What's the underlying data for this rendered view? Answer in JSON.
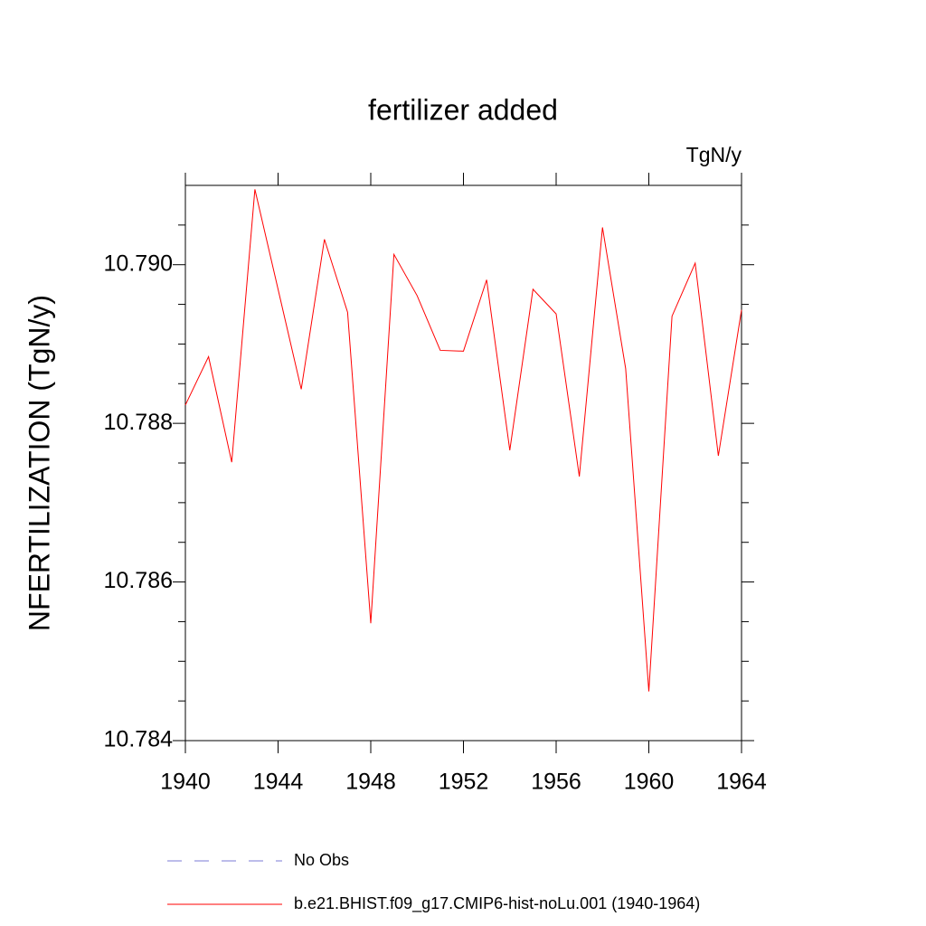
{
  "chart_data": {
    "type": "line",
    "title": "fertilizer added",
    "units": "TgN/y",
    "y_label": "NFERTILIZATION  (TgN/y)",
    "x": [
      1940,
      1941,
      1942,
      1943,
      1944,
      1945,
      1946,
      1947,
      1948,
      1949,
      1950,
      1951,
      1952,
      1953,
      1954,
      1955,
      1956,
      1957,
      1958,
      1959,
      1960,
      1961,
      1962,
      1963,
      1964
    ],
    "series": [
      {
        "name": "b.e21.BHIST.f09_g17.CMIP6-hist-noLu.001 (1940-1964)",
        "color": "#ff0000",
        "values": [
          10.78823,
          10.78884,
          10.78751,
          10.79095,
          10.78969,
          10.78843,
          10.79032,
          10.7894,
          10.78548,
          10.79013,
          10.78961,
          10.78892,
          10.78891,
          10.78981,
          10.78766,
          10.78969,
          10.78938,
          10.78733,
          10.79047,
          10.78869,
          10.78462,
          10.78935,
          10.79002,
          10.78759,
          10.78943
        ]
      }
    ],
    "legend_items": [
      {
        "label": "No Obs",
        "color": "#7b7bd6",
        "style": "dashed"
      }
    ],
    "xlim": [
      1940,
      1964
    ],
    "xticks": [
      1940,
      1944,
      1948,
      1952,
      1956,
      1960,
      1964
    ],
    "ylim": [
      10.784,
      10.791
    ],
    "yticks": [
      10.784,
      10.786,
      10.788,
      {
        "value": 10.79,
        "label": "10.790"
      }
    ],
    "yminorticks": [
      10.7845,
      10.785,
      10.7855,
      10.7865,
      10.787,
      10.7875,
      10.7885,
      10.789,
      10.7895,
      10.7905
    ]
  }
}
